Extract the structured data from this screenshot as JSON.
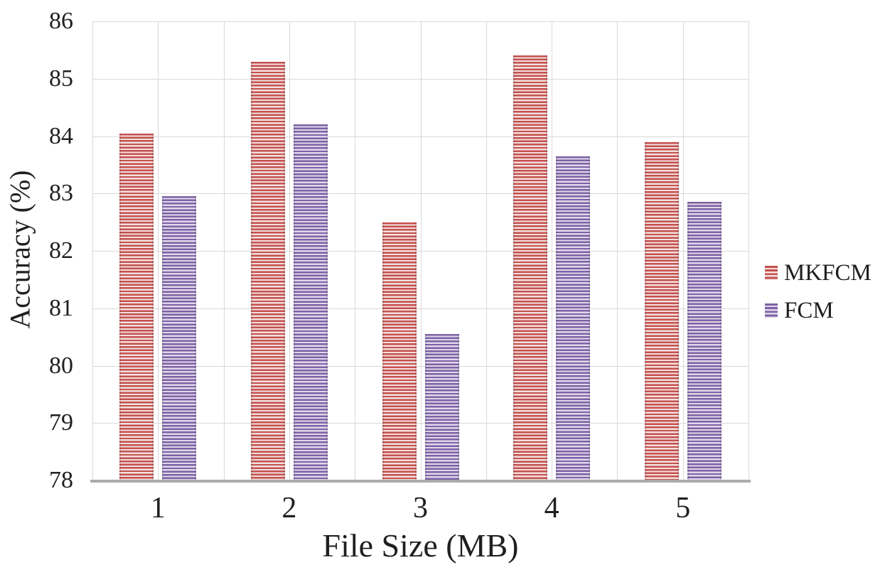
{
  "chart_data": {
    "type": "bar",
    "title": "",
    "xlabel": "File Size (MB)",
    "ylabel": "Accuracy (%)",
    "categories": [
      "1",
      "2",
      "3",
      "4",
      "5"
    ],
    "series": [
      {
        "name": "MKFCM",
        "values": [
          84.05,
          85.3,
          82.5,
          85.4,
          83.9
        ],
        "stripe_dark": "#c4514e",
        "stripe_light": "#f3e0df"
      },
      {
        "name": "FCM",
        "values": [
          82.95,
          84.2,
          80.55,
          83.65,
          82.85
        ],
        "stripe_dark": "#7e62a5",
        "stripe_light": "#dfd8eb"
      }
    ],
    "ylim": [
      78,
      86
    ],
    "yticks": [
      78,
      79,
      80,
      81,
      82,
      83,
      84,
      85,
      86
    ],
    "grid": true,
    "gridline_color": "#d9d9d9",
    "axis_line_color": "#ababab",
    "text_color": "#1f1f1f",
    "background_color": "#ffffff",
    "legend_position": "right",
    "bar_pattern": "horizontal-stripes"
  }
}
